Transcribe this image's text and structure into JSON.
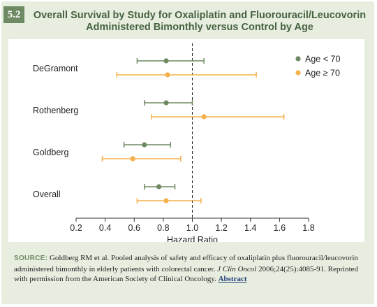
{
  "figure": {
    "number": "5.2",
    "title_line1": "Overall Survival by Study for Oxaliplatin and Fluorouracil/Leucovorin",
    "title_line2": "Administered Bimonthly versus Control by Age"
  },
  "chart_data": {
    "type": "scatter",
    "title": "Overall Survival by Study for Oxaliplatin and Fluorouracil/Leucovorin Administered Bimonthly versus Control by Age",
    "xlabel": "Hazard Ratio",
    "ylabel": "",
    "xlim": [
      0.2,
      1.8
    ],
    "xticks": [
      0.2,
      0.4,
      0.6,
      0.8,
      1.0,
      1.2,
      1.4,
      1.6,
      1.8
    ],
    "xtick_labels": [
      "0.2",
      "0.4",
      "0.6",
      "0.8",
      "1.0",
      "1.2",
      "1.4",
      "1.6",
      "1.8"
    ],
    "reference_line": 1.0,
    "categories": [
      "DeGramont",
      "Rothenberg",
      "Goldberg",
      "Overall"
    ],
    "legend_position": "top-right",
    "grid": false,
    "series": [
      {
        "name": "Age < 70",
        "color": "#6e8a62",
        "points": [
          {
            "est": 0.82,
            "lo": 0.62,
            "hi": 1.08
          },
          {
            "est": 0.82,
            "lo": 0.67,
            "hi": 1.0
          },
          {
            "est": 0.67,
            "lo": 0.53,
            "hi": 0.85
          },
          {
            "est": 0.77,
            "lo": 0.67,
            "hi": 0.88
          }
        ]
      },
      {
        "name": "Age ≥ 70",
        "color": "#f5b04b",
        "points": [
          {
            "est": 0.83,
            "lo": 0.48,
            "hi": 1.44
          },
          {
            "est": 1.08,
            "lo": 0.72,
            "hi": 1.63
          },
          {
            "est": 0.59,
            "lo": 0.38,
            "hi": 0.92
          },
          {
            "est": 0.82,
            "lo": 0.62,
            "hi": 1.06
          }
        ]
      }
    ]
  },
  "source": {
    "label": "SOURCE:",
    "text": " Goldberg RM et al. Pooled analysis of safety and efficacy of oxaliplatin plus fluorouracil/leucovorin administered bimonthly in elderly patients with colorectal cancer. ",
    "journal": "J Clin Oncol",
    "citation": " 2006;24(25):4085-91. Reprinted with permission from the American Society of Clinical Oncology. ",
    "link_text": "Abstract"
  }
}
